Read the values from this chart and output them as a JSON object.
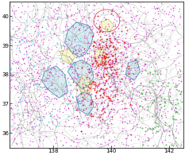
{
  "xlim": [
    136.5,
    142.5
  ],
  "ylim": [
    35.5,
    40.5
  ],
  "xticks": [
    138,
    140,
    142
  ],
  "yticks": [
    36,
    37,
    38,
    39,
    40
  ],
  "xlabel_vals": [
    "138",
    "140",
    "142"
  ],
  "ylabel_vals": [
    "36",
    "37",
    "38",
    "39",
    "40"
  ],
  "tick_fontsize": 5,
  "background_color": "#ffffff",
  "seed": 42,
  "geo_line_color": "#888888",
  "geo_line_dark": "#444444",
  "cyan_fill": "#b8dde8",
  "yellow_fill": "#f0f0a0",
  "magenta_color": "#cc22cc",
  "red_color": "#dd1111",
  "cyan_dot_color": "#22ccee",
  "green_color": "#33aa33",
  "n_geo_lines": 350,
  "n_magenta": 900,
  "n_red": 250,
  "n_cyan_dots": 100,
  "n_green": 80,
  "magenta_marker_size": 1.2,
  "red_marker_size": 1.8,
  "cyan_marker_size": 1.5,
  "green_marker_size": 2.0
}
